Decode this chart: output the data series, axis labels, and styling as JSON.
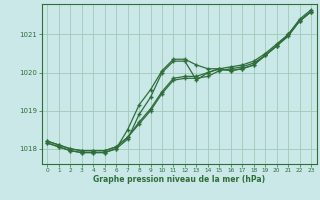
{
  "bg_color": "#cbe8e8",
  "grid_color": "#a0c8b8",
  "line_color": "#2d6e3a",
  "marker_color": "#2d6e3a",
  "xlabel": "Graphe pression niveau de la mer (hPa)",
  "xlabel_color": "#2d6e3a",
  "tick_color": "#2d6e3a",
  "yticks": [
    1018,
    1019,
    1020,
    1021
  ],
  "xticks": [
    0,
    1,
    2,
    3,
    4,
    5,
    6,
    7,
    8,
    9,
    10,
    11,
    12,
    13,
    14,
    15,
    16,
    17,
    18,
    19,
    20,
    21,
    22,
    23
  ],
  "xlim": [
    -0.5,
    23.5
  ],
  "ylim": [
    1017.6,
    1021.8
  ],
  "series": [
    [
      1018.2,
      1018.1,
      1018.0,
      1017.95,
      1017.95,
      1017.95,
      1018.05,
      1018.3,
      1018.65,
      1019.0,
      1019.45,
      1019.8,
      1019.85,
      1019.85,
      1019.9,
      1020.05,
      1020.1,
      1020.15,
      1020.25,
      1020.45,
      1020.7,
      1020.95,
      1021.35,
      1021.6
    ],
    [
      1018.2,
      1018.1,
      1018.0,
      1017.95,
      1017.95,
      1017.95,
      1018.05,
      1018.3,
      1018.7,
      1019.05,
      1019.5,
      1019.85,
      1019.9,
      1019.9,
      1020.0,
      1020.1,
      1020.15,
      1020.2,
      1020.3,
      1020.5,
      1020.75,
      1021.0,
      1021.4,
      1021.65
    ],
    [
      1018.15,
      1018.05,
      1017.95,
      1017.9,
      1017.9,
      1017.9,
      1018.0,
      1018.25,
      1018.9,
      1019.35,
      1020.0,
      1020.3,
      1020.3,
      1019.8,
      1020.0,
      1020.1,
      1020.05,
      1020.1,
      1020.2,
      1020.45,
      1020.7,
      1021.0,
      1021.35,
      1021.6
    ],
    [
      1018.15,
      1018.05,
      1017.95,
      1017.9,
      1017.9,
      1017.9,
      1018.0,
      1018.5,
      1019.15,
      1019.55,
      1020.05,
      1020.35,
      1020.35,
      1020.2,
      1020.1,
      1020.1,
      1020.05,
      1020.1,
      1020.2,
      1020.45,
      1020.7,
      1021.0,
      1021.35,
      1021.6
    ]
  ]
}
